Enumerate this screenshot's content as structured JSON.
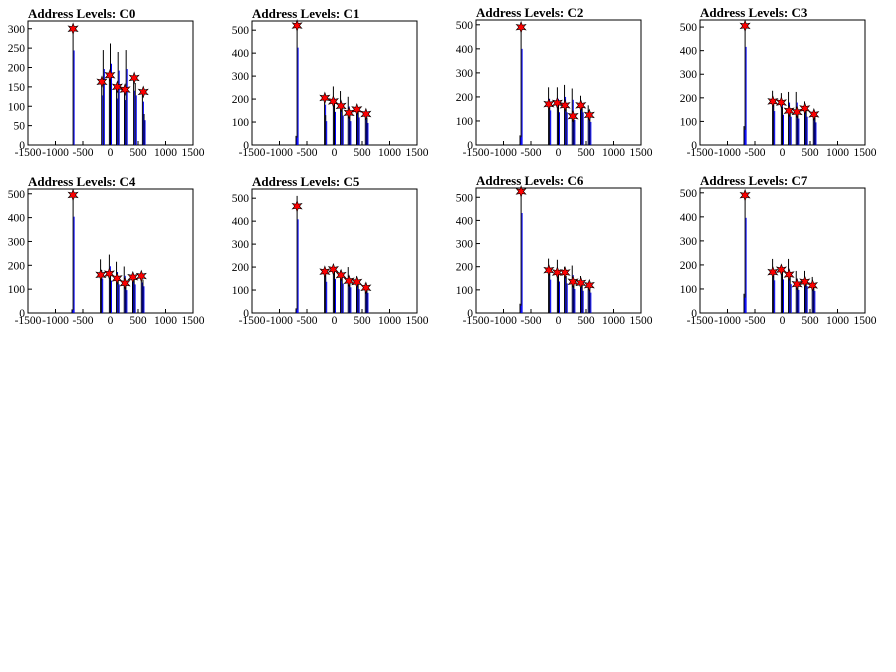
{
  "figure": {
    "panels_label": "Address Levels histograms"
  },
  "chart_data": [
    {
      "type": "bar",
      "title": "Address Levels: C0",
      "xlim": [
        -1500,
        1500
      ],
      "ylim": [
        0,
        320
      ],
      "xticks": [
        -1500,
        -1000,
        -500,
        0,
        500,
        1000,
        1500
      ],
      "xtick_labels": [
        "-1500",
        "-1000",
        "-500",
        "0",
        "500",
        "1000",
        "1500"
      ],
      "yticks": [
        0,
        50,
        100,
        150,
        200,
        250,
        300
      ],
      "ytick_labels": [
        "0",
        "50",
        "100",
        "150",
        "200",
        "250",
        "300"
      ],
      "bars": [
        [
          -680,
          305
        ],
        [
          -160,
          160
        ],
        [
          -130,
          245
        ],
        [
          -20,
          190
        ],
        [
          0,
          262
        ],
        [
          110,
          150
        ],
        [
          140,
          240
        ],
        [
          255,
          145
        ],
        [
          285,
          245
        ],
        [
          420,
          175
        ],
        [
          450,
          160
        ],
        [
          580,
          140
        ],
        [
          610,
          80
        ]
      ],
      "markers": [
        [
          -680,
          300
        ],
        [
          -155,
          163
        ],
        [
          -10,
          180
        ],
        [
          125,
          150
        ],
        [
          265,
          143
        ],
        [
          430,
          173
        ],
        [
          595,
          137
        ]
      ],
      "marker_style": "red-star",
      "grid": false,
      "legend": "none"
    },
    {
      "type": "bar",
      "title": "Address Levels: C1",
      "xlim": [
        -1500,
        1500
      ],
      "ylim": [
        0,
        540
      ],
      "xticks": [
        -1500,
        -1000,
        -500,
        0,
        500,
        1000,
        1500
      ],
      "xtick_labels": [
        "-1500",
        "-1000",
        "-500",
        "0",
        "500",
        "1000",
        "1500"
      ],
      "yticks": [
        0,
        100,
        200,
        300,
        400,
        500
      ],
      "ytick_labels": [
        "0",
        "100",
        "200",
        "300",
        "400",
        "500"
      ],
      "bars": [
        [
          -680,
          530
        ],
        [
          -700,
          40
        ],
        [
          -180,
          220
        ],
        [
          -160,
          130
        ],
        [
          -20,
          255
        ],
        [
          0,
          180
        ],
        [
          110,
          235
        ],
        [
          140,
          160
        ],
        [
          250,
          210
        ],
        [
          280,
          130
        ],
        [
          400,
          175
        ],
        [
          430,
          150
        ],
        [
          560,
          140
        ],
        [
          590,
          120
        ]
      ],
      "markers": [
        [
          -680,
          520
        ],
        [
          -175,
          205
        ],
        [
          -20,
          190
        ],
        [
          120,
          170
        ],
        [
          265,
          140
        ],
        [
          405,
          155
        ],
        [
          570,
          135
        ]
      ],
      "marker_style": "red-star",
      "grid": false,
      "legend": "none"
    },
    {
      "type": "bar",
      "title": "Address Levels: C2",
      "xlim": [
        -1500,
        1500
      ],
      "ylim": [
        0,
        520
      ],
      "xticks": [
        -1500,
        -1000,
        -500,
        0,
        500,
        1000,
        1500
      ],
      "xtick_labels": [
        "-1500",
        "-1000",
        "-500",
        "0",
        "500",
        "1000",
        "1500"
      ],
      "yticks": [
        0,
        100,
        200,
        300,
        400,
        500
      ],
      "ytick_labels": [
        "0",
        "100",
        "200",
        "300",
        "400",
        "500"
      ],
      "bars": [
        [
          -680,
          500
        ],
        [
          -700,
          40
        ],
        [
          -180,
          240
        ],
        [
          -160,
          180
        ],
        [
          -20,
          240
        ],
        [
          0,
          170
        ],
        [
          110,
          250
        ],
        [
          140,
          170
        ],
        [
          250,
          235
        ],
        [
          280,
          130
        ],
        [
          400,
          205
        ],
        [
          430,
          170
        ],
        [
          540,
          165
        ],
        [
          570,
          120
        ]
      ],
      "markers": [
        [
          -680,
          490
        ],
        [
          -175,
          170
        ],
        [
          -20,
          175
        ],
        [
          120,
          165
        ],
        [
          265,
          120
        ],
        [
          405,
          165
        ],
        [
          560,
          125
        ]
      ],
      "marker_style": "red-star",
      "grid": false,
      "legend": "none"
    },
    {
      "type": "bar",
      "title": "Address Levels: C3",
      "xlim": [
        -1500,
        1500
      ],
      "ylim": [
        0,
        530
      ],
      "xticks": [
        -1500,
        -1000,
        -500,
        0,
        500,
        1000,
        1500
      ],
      "xtick_labels": [
        "-1500",
        "-1000",
        "-500",
        "0",
        "500",
        "1000",
        "1500"
      ],
      "yticks": [
        0,
        100,
        200,
        300,
        400,
        500
      ],
      "ytick_labels": [
        "0",
        "100",
        "200",
        "300",
        "400",
        "500"
      ],
      "bars": [
        [
          -680,
          520
        ],
        [
          -700,
          80
        ],
        [
          -180,
          230
        ],
        [
          -160,
          180
        ],
        [
          -20,
          220
        ],
        [
          0,
          160
        ],
        [
          110,
          225
        ],
        [
          140,
          150
        ],
        [
          250,
          225
        ],
        [
          280,
          140
        ],
        [
          400,
          185
        ],
        [
          430,
          150
        ],
        [
          560,
          140
        ],
        [
          590,
          120
        ]
      ],
      "markers": [
        [
          -680,
          505
        ],
        [
          -175,
          185
        ],
        [
          -20,
          180
        ],
        [
          120,
          145
        ],
        [
          265,
          140
        ],
        [
          405,
          155
        ],
        [
          570,
          130
        ]
      ],
      "marker_style": "red-star",
      "grid": false,
      "legend": "none"
    },
    {
      "type": "bar",
      "title": "Address Levels: C4",
      "xlim": [
        -1500,
        1500
      ],
      "ylim": [
        0,
        520
      ],
      "xticks": [
        -1500,
        -1000,
        -500,
        0,
        500,
        1000,
        1500
      ],
      "xtick_labels": [
        "-1500",
        "-1000",
        "-500",
        "0",
        "500",
        "1000",
        "1500"
      ],
      "yticks": [
        0,
        100,
        200,
        300,
        400,
        500
      ],
      "ytick_labels": [
        "0",
        "100",
        "200",
        "300",
        "400",
        "500"
      ],
      "bars": [
        [
          -680,
          505
        ],
        [
          -700,
          15
        ],
        [
          -180,
          225
        ],
        [
          -160,
          180
        ],
        [
          -20,
          245
        ],
        [
          0,
          170
        ],
        [
          110,
          215
        ],
        [
          140,
          150
        ],
        [
          250,
          195
        ],
        [
          280,
          120
        ],
        [
          400,
          165
        ],
        [
          430,
          150
        ],
        [
          560,
          160
        ],
        [
          590,
          140
        ]
      ],
      "markers": [
        [
          -680,
          495
        ],
        [
          -175,
          160
        ],
        [
          -20,
          165
        ],
        [
          120,
          145
        ],
        [
          265,
          125
        ],
        [
          405,
          150
        ],
        [
          560,
          155
        ]
      ],
      "marker_style": "red-star",
      "grid": false,
      "legend": "none"
    },
    {
      "type": "bar",
      "title": "Address Levels: C5",
      "xlim": [
        -1500,
        1500
      ],
      "ylim": [
        0,
        540
      ],
      "xticks": [
        -1500,
        -1000,
        -500,
        0,
        500,
        1000,
        1500
      ],
      "xtick_labels": [
        "-1500",
        "-1000",
        "-500",
        "0",
        "500",
        "1000",
        "1500"
      ],
      "yticks": [
        0,
        100,
        200,
        300,
        400,
        500
      ],
      "ytick_labels": [
        "0",
        "100",
        "200",
        "300",
        "400",
        "500"
      ],
      "bars": [
        [
          -680,
          510
        ],
        [
          -700,
          20
        ],
        [
          -180,
          195
        ],
        [
          -160,
          170
        ],
        [
          -20,
          210
        ],
        [
          0,
          185
        ],
        [
          110,
          185
        ],
        [
          140,
          160
        ],
        [
          250,
          200
        ],
        [
          280,
          140
        ],
        [
          400,
          160
        ],
        [
          430,
          130
        ],
        [
          560,
          130
        ],
        [
          590,
          110
        ]
      ],
      "markers": [
        [
          -680,
          465
        ],
        [
          -175,
          180
        ],
        [
          -20,
          190
        ],
        [
          120,
          165
        ],
        [
          265,
          140
        ],
        [
          405,
          135
        ],
        [
          570,
          110
        ]
      ],
      "marker_style": "red-star",
      "grid": false,
      "legend": "none"
    },
    {
      "type": "bar",
      "title": "Address Levels: C6",
      "xlim": [
        -1500,
        1500
      ],
      "ylim": [
        0,
        540
      ],
      "xticks": [
        -1500,
        -1000,
        -500,
        0,
        500,
        1000,
        1500
      ],
      "xtick_labels": [
        "-1500",
        "-1000",
        "-500",
        "0",
        "500",
        "1000",
        "1500"
      ],
      "yticks": [
        0,
        100,
        200,
        300,
        400,
        500
      ],
      "ytick_labels": [
        "0",
        "100",
        "200",
        "300",
        "400",
        "500"
      ],
      "bars": [
        [
          -680,
          540
        ],
        [
          -700,
          40
        ],
        [
          -180,
          235
        ],
        [
          -160,
          180
        ],
        [
          -20,
          230
        ],
        [
          0,
          170
        ],
        [
          110,
          200
        ],
        [
          140,
          160
        ],
        [
          250,
          205
        ],
        [
          280,
          130
        ],
        [
          400,
          160
        ],
        [
          430,
          120
        ],
        [
          540,
          130
        ],
        [
          570,
          110
        ]
      ],
      "markers": [
        [
          -680,
          525
        ],
        [
          -175,
          185
        ],
        [
          -20,
          175
        ],
        [
          120,
          175
        ],
        [
          265,
          135
        ],
        [
          405,
          130
        ],
        [
          560,
          120
        ]
      ],
      "marker_style": "red-star",
      "grid": false,
      "legend": "none"
    },
    {
      "type": "bar",
      "title": "Address Levels: C7",
      "xlim": [
        -1500,
        1500
      ],
      "ylim": [
        0,
        520
      ],
      "xticks": [
        -1500,
        -1000,
        -500,
        0,
        500,
        1000,
        1500
      ],
      "xtick_labels": [
        "-1500",
        "-1000",
        "-500",
        "0",
        "500",
        "1000",
        "1500"
      ],
      "yticks": [
        0,
        100,
        200,
        300,
        400,
        500
      ],
      "ytick_labels": [
        "0",
        "100",
        "200",
        "300",
        "400",
        "500"
      ],
      "bars": [
        [
          -680,
          495
        ],
        [
          -700,
          80
        ],
        [
          -180,
          225
        ],
        [
          -160,
          170
        ],
        [
          -20,
          200
        ],
        [
          0,
          175
        ],
        [
          110,
          225
        ],
        [
          140,
          150
        ],
        [
          250,
          175
        ],
        [
          280,
          120
        ],
        [
          400,
          175
        ],
        [
          430,
          140
        ],
        [
          540,
          150
        ],
        [
          570,
          115
        ]
      ],
      "markers": [
        [
          -680,
          490
        ],
        [
          -175,
          170
        ],
        [
          -20,
          180
        ],
        [
          120,
          160
        ],
        [
          265,
          120
        ],
        [
          405,
          130
        ],
        [
          545,
          115
        ]
      ],
      "marker_style": "red-star",
      "grid": false,
      "legend": "none"
    }
  ]
}
